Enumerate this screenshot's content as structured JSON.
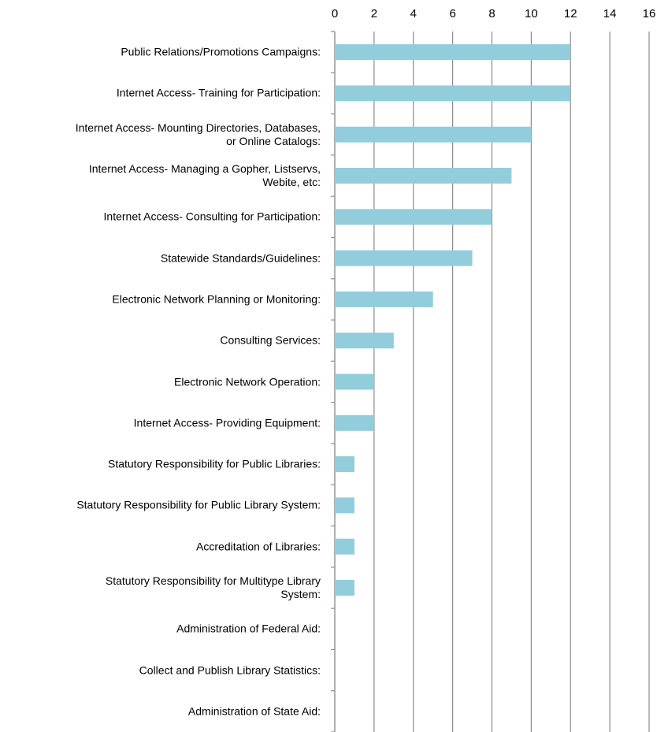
{
  "chart_data": {
    "type": "bar",
    "orientation": "horizontal",
    "categories": [
      "Public Relations/Promotions Campaigns:",
      "Internet Access- Training for Participation:",
      "Internet Access- Mounting Directories, Databases,\nor Online Catalogs:",
      "Internet Access- Managing a Gopher, Listservs,\nWebite, etc:",
      "Internet Access- Consulting for Participation:",
      "Statewide Standards/Guidelines:",
      "Electronic Network Planning or Monitoring:",
      "Consulting Services:",
      "Electronic Network Operation:",
      "Internet Access- Providing Equipment:",
      "Statutory Responsibility for Public Libraries:",
      "Statutory Responsibility for Public Library System:",
      "Accreditation of Libraries:",
      "Statutory Responsibility for Multitype Library\nSystem:",
      "Administration of Federal Aid:",
      "Collect and Publish Library Statistics:",
      "Administration of State Aid:"
    ],
    "values": [
      12,
      12,
      10,
      9,
      8,
      7,
      5,
      3,
      2,
      2,
      1,
      1,
      1,
      1,
      0,
      0,
      0
    ],
    "color": "#92cddc",
    "xlim": [
      0,
      16
    ],
    "xticks": [
      0,
      2,
      4,
      6,
      8,
      10,
      12,
      14,
      16
    ],
    "grid": true
  }
}
